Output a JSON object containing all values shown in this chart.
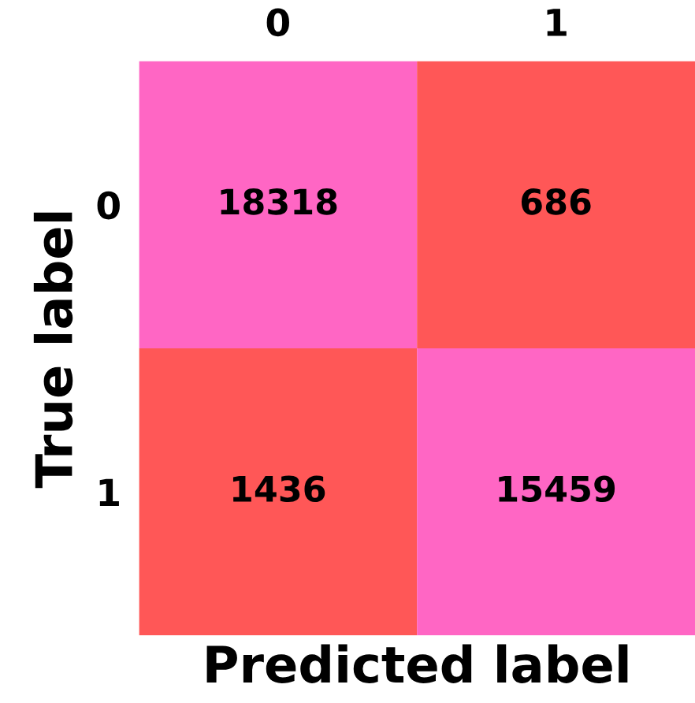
{
  "chart_data": {
    "type": "heatmap",
    "xlabel": "Predicted label",
    "ylabel": "True label",
    "categories": [
      "0",
      "1"
    ],
    "y_categories": [
      "0",
      "1"
    ],
    "cells": [
      [
        18318,
        686
      ],
      [
        1436,
        15459
      ]
    ],
    "data_labels": true
  }
}
